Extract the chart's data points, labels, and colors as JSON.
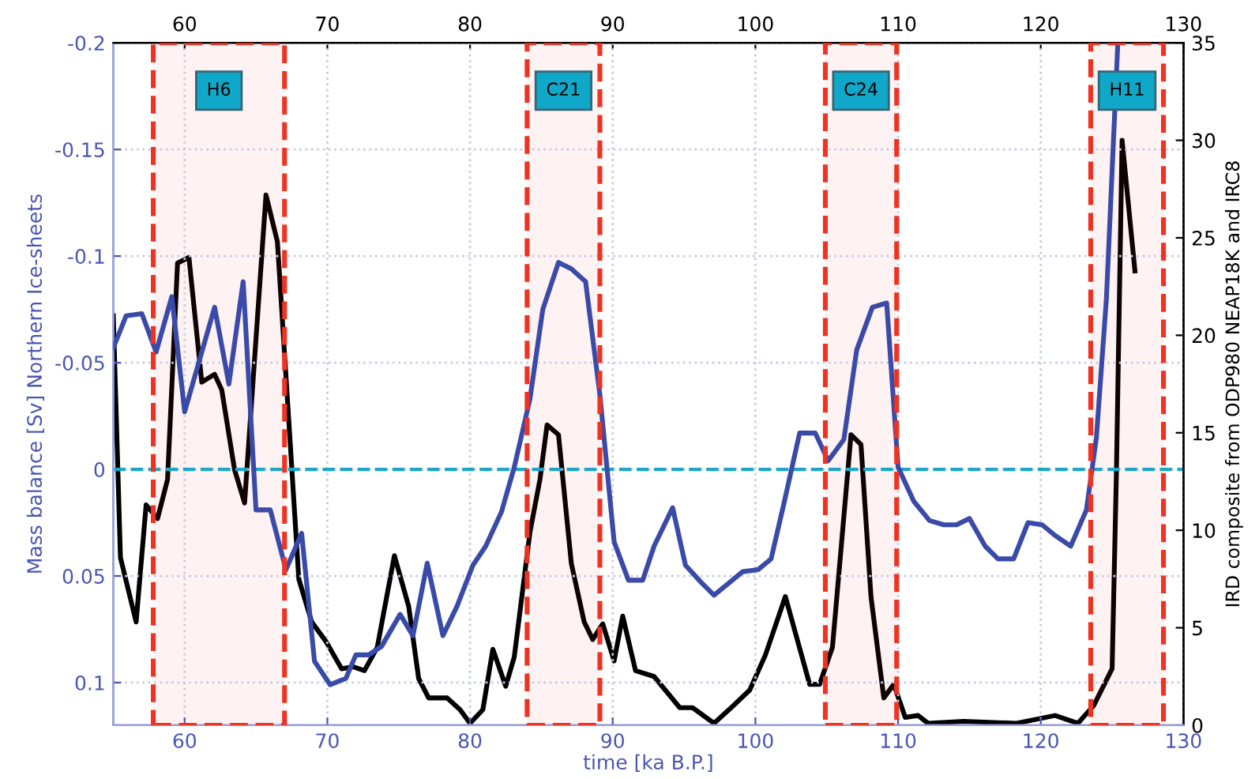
{
  "chart_data": {
    "type": "line",
    "xlabel": "time [ka B.P.]",
    "ylabel": "Mass balance [Sv] Northern Ice-sheets",
    "y2label": "IRD composite from ODP980 NEAP18K and IRC8",
    "xlim": [
      55,
      130
    ],
    "xticks": [
      60,
      70,
      80,
      90,
      100,
      110,
      120,
      130
    ],
    "x2lim": [
      55,
      130
    ],
    "x2ticks": [
      60,
      70,
      80,
      90,
      100,
      110,
      120,
      130
    ],
    "ylim": [
      0.12,
      -0.2
    ],
    "yticks": [
      -0.2,
      -0.15,
      -0.1,
      -0.05,
      0,
      0.05,
      0.1
    ],
    "y2lim": [
      0,
      35
    ],
    "y2ticks": [
      0,
      5,
      10,
      15,
      20,
      25,
      30,
      35
    ],
    "grid": true,
    "line_style": "solid",
    "series": [
      {
        "color": "#3a4aa8",
        "axis": "y",
        "x": [
          55,
          55.9,
          57,
          58,
          59.1,
          60,
          61.2,
          62.1,
          63.1,
          64.1,
          65,
          66,
          67.1,
          68.2,
          69.1,
          70.2,
          71.3,
          72,
          72.9,
          73.8,
          75.1,
          76,
          77,
          78.1,
          79.1,
          80.2,
          81.1,
          82.2,
          83.1,
          84.2,
          85.1,
          86.2,
          87.1,
          88.1,
          89.1,
          90.1,
          91.1,
          92.1,
          92.9,
          94.2,
          95.1,
          96.2,
          97.1,
          98.2,
          99.1,
          100.2,
          101.1,
          102,
          103.1,
          104.2,
          105.1,
          106.2,
          107.1,
          108.2,
          109.2,
          110,
          111.1,
          112.2,
          113.2,
          114.1,
          115,
          116.1,
          117,
          118.1,
          119.1,
          120.1,
          121,
          122.1,
          123.2,
          123.9,
          124.6,
          125.4
        ],
        "values": [
          -0.057,
          -0.072,
          -0.073,
          -0.055,
          -0.081,
          -0.027,
          -0.055,
          -0.076,
          -0.04,
          -0.088,
          0.019,
          0.019,
          0.047,
          0.03,
          0.09,
          0.101,
          0.098,
          0.087,
          0.087,
          0.083,
          0.068,
          0.078,
          0.044,
          0.078,
          0.064,
          0.045,
          0.036,
          0.02,
          -0.001,
          -0.033,
          -0.075,
          -0.097,
          -0.094,
          -0.088,
          -0.035,
          0.034,
          0.052,
          0.052,
          0.036,
          0.018,
          0.045,
          0.053,
          0.059,
          0.053,
          0.048,
          0.047,
          0.042,
          0.016,
          -0.017,
          -0.017,
          -0.004,
          -0.014,
          -0.056,
          -0.076,
          -0.078,
          -0.001,
          0.015,
          0.024,
          0.026,
          0.026,
          0.023,
          0.036,
          0.042,
          0.042,
          0.025,
          0.026,
          0.031,
          0.036,
          0.019,
          -0.015,
          -0.08,
          -0.2
        ]
      },
      {
        "color": "#000000",
        "axis": "y2",
        "x": [
          55,
          55.5,
          56.6,
          57.3,
          58.1,
          58.8,
          59.5,
          60.3,
          61.2,
          62.1,
          62.6,
          63.5,
          64.2,
          65.7,
          66.5,
          67.3,
          68,
          68.9,
          69.9,
          71,
          71.8,
          72.6,
          73.5,
          74.7,
          75.7,
          76.4,
          77.1,
          78.4,
          79.3,
          80,
          80.9,
          81.6,
          82.5,
          83.1,
          84.2,
          84.9,
          85.4,
          86.2,
          87.1,
          88,
          88.6,
          89.3,
          90.1,
          90.7,
          91.6,
          92.9,
          94.7,
          95.6,
          97.1,
          98.3,
          99.6,
          100.7,
          102.1,
          103.8,
          104.5,
          105.4,
          106.7,
          107.4,
          108.1,
          109,
          109.7,
          110.5,
          111.4,
          112.1,
          114.6,
          118.3,
          121,
          122.6,
          123.7,
          125,
          125.3,
          125.7,
          126.6
        ],
        "values": [
          21,
          8.6,
          5.3,
          11.3,
          10.6,
          12.6,
          23.7,
          24,
          17.6,
          18,
          17.2,
          13.1,
          11.4,
          27.2,
          24.8,
          15.6,
          7.5,
          5.3,
          4.3,
          2.9,
          3,
          2.8,
          4,
          8.7,
          6.1,
          2.4,
          1.4,
          1.4,
          0.8,
          0.1,
          0.8,
          3.9,
          2,
          3.5,
          9.9,
          12.6,
          15.4,
          14.9,
          8.3,
          5.3,
          4.4,
          5.2,
          3.3,
          5.6,
          2.8,
          2.5,
          0.9,
          0.9,
          0.1,
          0.9,
          1.8,
          3.6,
          6.6,
          2.1,
          2.1,
          4,
          14.9,
          14.4,
          6.6,
          1.4,
          2.1,
          0.4,
          0.5,
          0.1,
          0.2,
          0.1,
          0.5,
          0.1,
          1,
          2.9,
          12.9,
          30,
          23.3
        ]
      }
    ],
    "ref_lines": [
      {
        "axis": "y",
        "value": 0,
        "color": "#1aa7c8",
        "line_style": "dashed"
      }
    ],
    "bands": [
      {
        "axis": "x",
        "from": 57.8,
        "to": 67.0,
        "label": "H6",
        "color": "#ee3322"
      },
      {
        "axis": "x",
        "from": 84.0,
        "to": 89.1,
        "label": "C21",
        "color": "#ee3322"
      },
      {
        "axis": "x",
        "from": 104.9,
        "to": 109.9,
        "label": "C24",
        "color": "#ee3322"
      },
      {
        "axis": "x",
        "from": 123.5,
        "to": 128.6,
        "label": "H11",
        "color": "#ee3322"
      }
    ]
  }
}
